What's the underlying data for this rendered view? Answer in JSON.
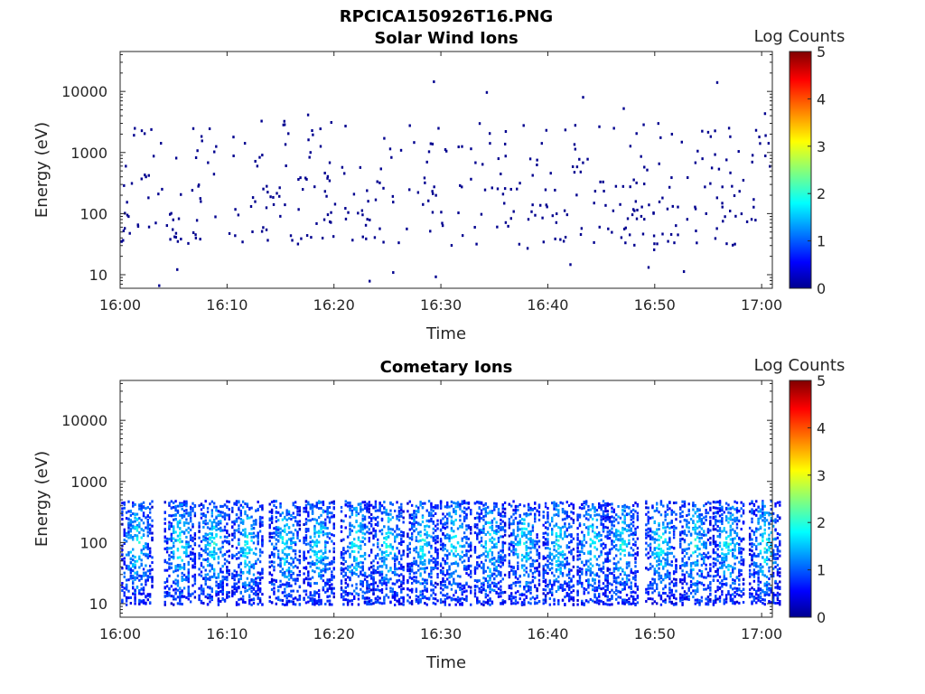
{
  "figure_title": "RPCICA150926T16.PNG",
  "chart_data": [
    {
      "type": "heatmap",
      "title": "Solar Wind Ions",
      "xlabel": "Time",
      "ylabel": "Energy (eV)",
      "x_tick_labels": [
        "16:00",
        "16:10",
        "16:20",
        "16:30",
        "16:40",
        "16:50",
        "17:00"
      ],
      "x_range": [
        "16:00",
        "17:01"
      ],
      "y_scale": "log",
      "y_tick_labels": [
        "10",
        "100",
        "1000",
        "10000"
      ],
      "y_range": [
        6,
        45000
      ],
      "colorbar": {
        "label": "Log Counts",
        "range": [
          0,
          5
        ],
        "tick_labels": [
          "0",
          "1",
          "2",
          "3",
          "4",
          "5"
        ],
        "colormap": "jet"
      },
      "description_of_content": "sparse",
      "colors": {
        "sparse_points": "#00008f"
      }
    },
    {
      "type": "heatmap",
      "title": "Cometary Ions",
      "xlabel": "Time",
      "ylabel": "Energy (eV)",
      "x_tick_labels": [
        "16:00",
        "16:10",
        "16:20",
        "16:30",
        "16:40",
        "16:50",
        "17:00"
      ],
      "x_range": [
        "16:00",
        "17:01"
      ],
      "y_scale": "log",
      "y_tick_labels": [
        "10",
        "100",
        "1000",
        "10000"
      ],
      "y_range": [
        6,
        45000
      ],
      "colorbar": {
        "label": "Log Counts",
        "range": [
          0,
          5
        ],
        "tick_labels": [
          "0",
          "1",
          "2",
          "3",
          "4",
          "5"
        ],
        "colormap": "jet"
      },
      "bursts_minutes": [
        1.5,
        5.5,
        8.7,
        11.8,
        15.3,
        18.5,
        22.0,
        25.0,
        28.2,
        31.3,
        34.5,
        37.7,
        40.9,
        44.1,
        46.9,
        50.5,
        53.7,
        56.8,
        60.2
      ],
      "burst_energy_range_eV": [
        10,
        500
      ]
    }
  ]
}
